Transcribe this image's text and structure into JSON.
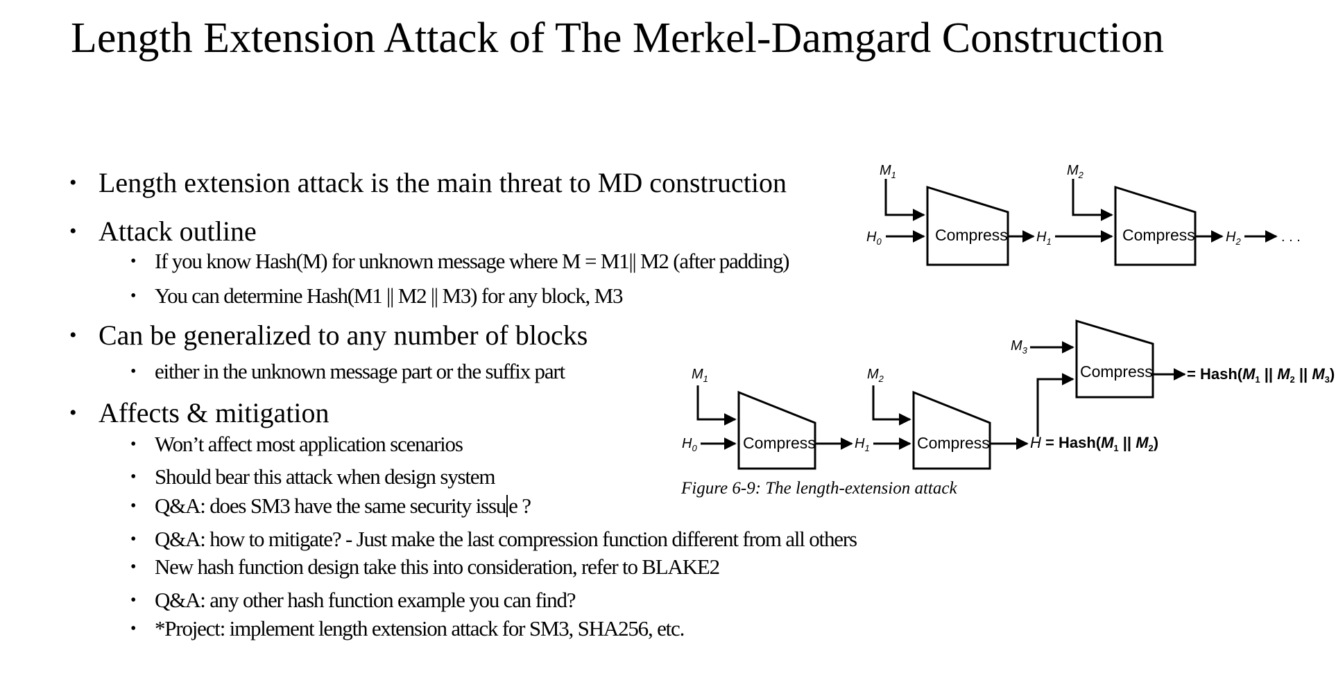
{
  "slide": {
    "title": "Length Extension Attack of The Merkel-Damgard Construction"
  },
  "bullets": {
    "threat": "Length extension attack is the main threat to MD construction",
    "outline": "Attack outline",
    "outline_known": "If you know Hash(M) for unknown message where  M = M1|| M2 (after padding)",
    "outline_determine": "You can determine Hash(M1 || M2 || M3) for any block, M3",
    "generalized": "Can be generalized to any number of blocks",
    "generalized_sub": "either in the unknown message part or the suffix part",
    "affects": "Affects & mitigation",
    "affects_1": "Won’t affect most application scenarios",
    "affects_2": "Should bear this attack when design system",
    "affects_3a": "Q&A: does SM3 have the same security issu",
    "affects_3b": "e ?",
    "affects_4": "Q&A: how to mitigate? - Just make the last compression function different from all others",
    "affects_5": "New hash function design take this into consideration, refer to BLAKE2",
    "affects_6": "Q&A: any other hash function example you can find?",
    "affects_7": "*Project: implement length extension attack for SM3, SHA256, etc."
  },
  "figure": {
    "caption": "Figure 6-9: The length-extension attack",
    "compress_label": "Compress",
    "top": {
      "m1": "M",
      "m1_sub": "1",
      "m2": "M",
      "m2_sub": "2",
      "h0": "H",
      "h0_sub": "0",
      "h1": "H",
      "h1_sub": "1",
      "h2": "H",
      "h2_sub": "2",
      "ellipsis": ". . ."
    },
    "bottom": {
      "m1": "M",
      "m1_sub": "1",
      "m2": "M",
      "m2_sub": "2",
      "m3": "M",
      "m3_sub": "3",
      "h0": "H",
      "h0_sub": "0",
      "h1": "H",
      "h1_sub": "1",
      "hash_eq_h": "H",
      "hash_eq_text": " = Hash(",
      "hash_eq_m1": "M",
      "hash_eq_m1_sub": "1",
      "hash_eq_sep": " || ",
      "hash_eq_m2": "M",
      "hash_eq_m2_sub": "2",
      "hash_eq_close": ")",
      "result_prefix": "= Hash(",
      "result_m1": "M",
      "result_m1_sub": "1",
      "result_sep1": " || ",
      "result_m2": "M",
      "result_m2_sub": "2",
      "result_sep2": " || ",
      "result_m3": "M",
      "result_m3_sub": "3",
      "result_close": ")"
    }
  }
}
